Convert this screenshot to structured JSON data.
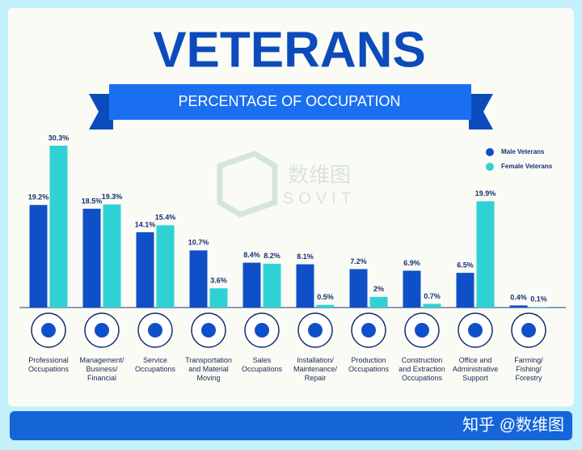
{
  "chart_data": {
    "type": "bar",
    "title": "VETERANS",
    "subtitle": "PERCENTAGE OF OCCUPATION",
    "categories": [
      [
        "Professional",
        "Occupations"
      ],
      [
        "Management/",
        "Business/",
        "Financial"
      ],
      [
        "Service",
        "Occupations"
      ],
      [
        "Transportation",
        "and Material",
        "Moving"
      ],
      [
        "Sales",
        "Occupations"
      ],
      [
        "Installation/",
        "Maintenance/",
        "Repair"
      ],
      [
        "Production",
        "Occupations"
      ],
      [
        "Construction",
        "and Extraction",
        "Occupations"
      ],
      [
        "Office and",
        "Administrative",
        "Support"
      ],
      [
        "Farming/",
        "Fishing/",
        "Forestry"
      ]
    ],
    "series": [
      {
        "name": "Male Veterans",
        "color": "#0f50c8",
        "values": [
          19.2,
          18.5,
          14.1,
          10.7,
          8.4,
          8.1,
          7.2,
          6.9,
          6.5,
          0.4
        ],
        "value_labels": [
          "19.2%",
          "18.5%",
          "14.1%",
          "10.7%",
          "8.4%",
          "8.1%",
          "7.2%",
          "6.9%",
          "6.5%",
          "0.4%"
        ]
      },
      {
        "name": "Female Veterans",
        "color": "#2ed2d4",
        "values": [
          30.3,
          19.3,
          15.4,
          3.6,
          8.2,
          0.5,
          2,
          0.7,
          19.9,
          0.1
        ],
        "value_labels": [
          "30.3%",
          "19.3%",
          "15.4%",
          "3.6%",
          "8.2%",
          "0.5%",
          "2%",
          "0.7%",
          "19.9%",
          "0.1%"
        ]
      }
    ],
    "legend": "top-right",
    "watermark": [
      "数维图",
      "SOVIT"
    ],
    "footer": "知乎 @数维图"
  }
}
